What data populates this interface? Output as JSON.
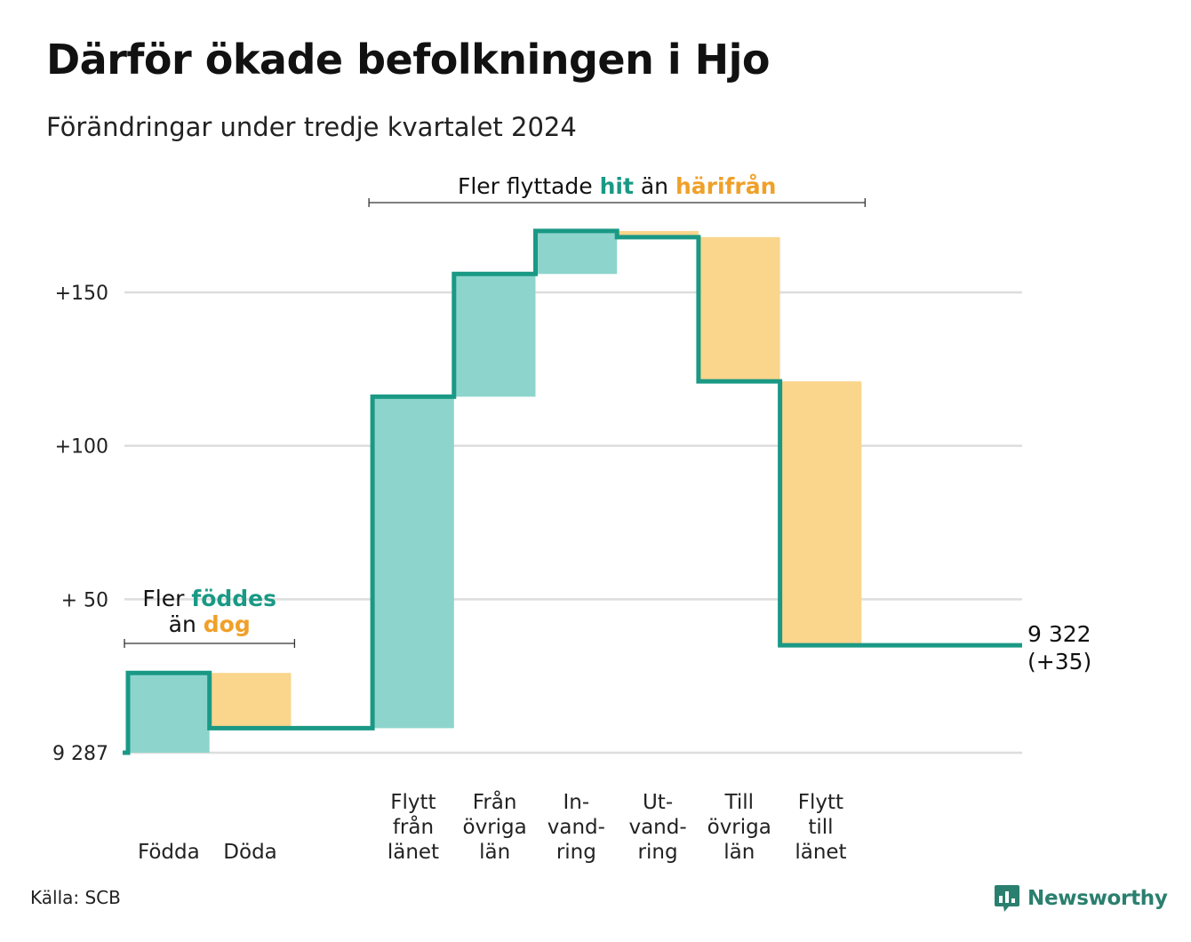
{
  "header": {
    "title": "Därför ökade befolkningen i Hjo",
    "subtitle": "Förändringar under tredje kvartalet 2024"
  },
  "footer": {
    "source": "Källa: SCB",
    "brand": "Newsworthy",
    "brand_icon": "bar-chart-speech-icon"
  },
  "colors": {
    "increase": "#8dd5cc",
    "decrease": "#fad58c",
    "line": "#1a9985",
    "accent_teal": "#1a9985",
    "accent_orange": "#f0a028",
    "grid": "#dddddd"
  },
  "chart_data": {
    "type": "waterfall",
    "baseline": 9287,
    "final_value": 9322,
    "final_label_value": "9 322",
    "final_label_change": "(+35)",
    "ylim": [
      0,
      175
    ],
    "yticks": [
      {
        "value": 0,
        "label": "9 287"
      },
      {
        "value": 50,
        "label": "+ 50"
      },
      {
        "value": 100,
        "label": "+100"
      },
      {
        "value": 150,
        "label": "+150"
      }
    ],
    "steps": [
      {
        "category": [
          "Födda"
        ],
        "change": 26,
        "direction": "increase"
      },
      {
        "category": [
          "Döda"
        ],
        "change": -18,
        "direction": "decrease"
      },
      {
        "category": [
          ""
        ],
        "change": 0,
        "direction": "none"
      },
      {
        "category": [
          "Flytt",
          "från",
          "länet"
        ],
        "change": 108,
        "direction": "increase"
      },
      {
        "category": [
          "Från",
          "övriga",
          "län"
        ],
        "change": 40,
        "direction": "increase"
      },
      {
        "category": [
          "In-",
          "vand-",
          "ring"
        ],
        "change": 14,
        "direction": "increase"
      },
      {
        "category": [
          "Ut-",
          "vand-",
          "ring"
        ],
        "change": -2,
        "direction": "decrease"
      },
      {
        "category": [
          "Till",
          "övriga",
          "län"
        ],
        "change": -47,
        "direction": "decrease"
      },
      {
        "category": [
          "Flytt",
          "till",
          "länet"
        ],
        "change": -86,
        "direction": "decrease"
      }
    ],
    "annotations": [
      {
        "span": [
          0,
          1
        ],
        "line1": [
          {
            "text": "Fler ",
            "color": "dark"
          },
          {
            "text": "föddes",
            "color": "teal",
            "bold": true
          }
        ],
        "line2": [
          {
            "text": "än ",
            "color": "dark"
          },
          {
            "text": "dog",
            "color": "orange",
            "bold": true
          }
        ]
      },
      {
        "span": [
          3,
          8
        ],
        "line1": [
          {
            "text": "Fler flyttade ",
            "color": "dark"
          },
          {
            "text": "hit",
            "color": "teal",
            "bold": true
          },
          {
            "text": "  än ",
            "color": "dark"
          },
          {
            "text": "härifrån",
            "color": "orange",
            "bold": true
          }
        ]
      }
    ]
  }
}
